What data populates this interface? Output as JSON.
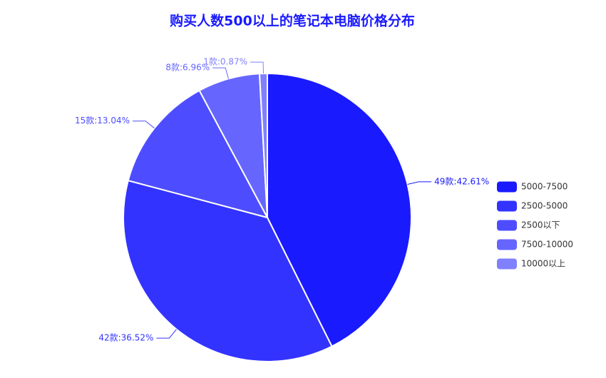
{
  "chart_data": {
    "type": "pie",
    "title": "购买人数500以上的笔记本电脑价格分布",
    "categories": [
      "5000-7500",
      "2500-5000",
      "2500以下",
      "7500-10000",
      "10000以上"
    ],
    "values": [
      49,
      42,
      15,
      8,
      1
    ],
    "value_labels": [
      "49款:42.61%",
      "42款:36.52%",
      "15款:13.04%",
      "8款:6.96%",
      "1款:0.87%"
    ],
    "colors": [
      "#1a1aff",
      "#3333ff",
      "#4d4dff",
      "#6666ff",
      "#8080ff"
    ],
    "legend": "right"
  }
}
